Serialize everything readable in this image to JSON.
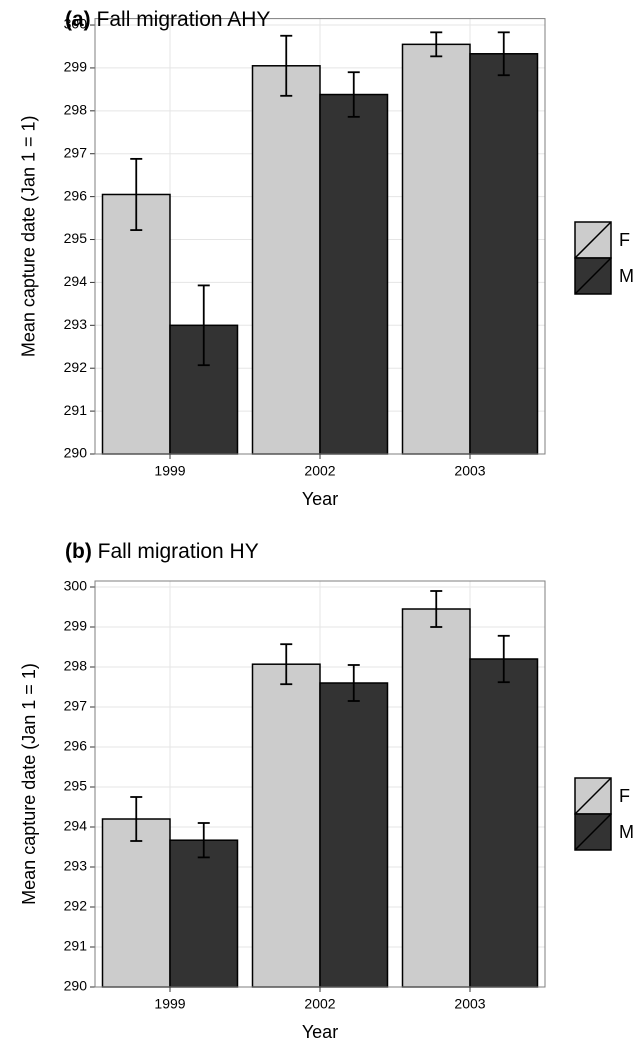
{
  "chart_data": [
    {
      "type": "bar",
      "panel_label": "(a)",
      "title": "Fall migration AHY",
      "xlabel": "Year",
      "ylabel": "Mean capture date (Jan 1 = 1)",
      "categories": [
        "1999",
        "2002",
        "2003"
      ],
      "series": [
        {
          "name": "F",
          "color": "#cccccc",
          "values": [
            296.05,
            299.05,
            299.55
          ],
          "errors": [
            0.83,
            0.7,
            0.28
          ]
        },
        {
          "name": "M",
          "color": "#333333",
          "values": [
            293.0,
            298.38,
            299.33
          ],
          "errors": [
            0.93,
            0.52,
            0.5
          ]
        }
      ],
      "ylim": [
        290,
        300.15
      ],
      "yticks": [
        290,
        291,
        292,
        293,
        294,
        295,
        296,
        297,
        298,
        299,
        300
      ],
      "grid": true,
      "legend": "right"
    },
    {
      "type": "bar",
      "panel_label": "(b)",
      "title": "Fall migration HY",
      "xlabel": "Year",
      "ylabel": "Mean capture date (Jan 1 = 1)",
      "categories": [
        "1999",
        "2002",
        "2003"
      ],
      "series": [
        {
          "name": "F",
          "color": "#cccccc",
          "values": [
            294.2,
            298.07,
            299.45
          ],
          "errors": [
            0.55,
            0.5,
            0.45
          ]
        },
        {
          "name": "M",
          "color": "#333333",
          "values": [
            293.67,
            297.6,
            298.2
          ],
          "errors": [
            0.43,
            0.45,
            0.58
          ]
        }
      ],
      "ylim": [
        290,
        300.15
      ],
      "yticks": [
        290,
        291,
        292,
        293,
        294,
        295,
        296,
        297,
        298,
        299,
        300
      ],
      "grid": true,
      "legend": "right"
    }
  ]
}
